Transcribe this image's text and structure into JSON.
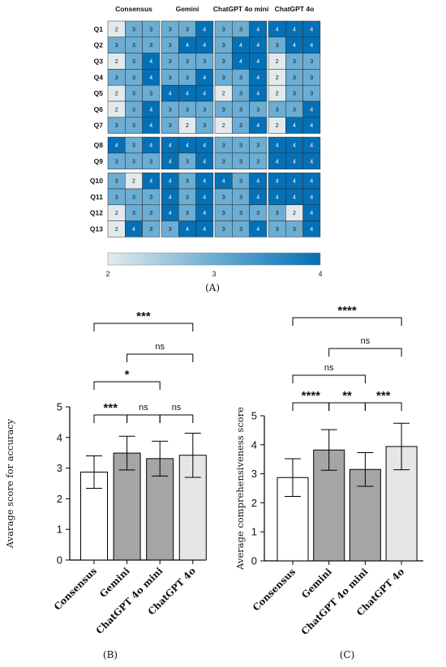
{
  "heatmap": {
    "columns": [
      "Consensus",
      "Gemini",
      "ChatGPT 4o mini",
      "ChatGPT 4o"
    ],
    "rows": [
      "Q1",
      "Q2",
      "Q3",
      "Q4",
      "Q5",
      "Q6",
      "Q7",
      "Q8",
      "Q9",
      "Q10",
      "Q11",
      "Q12",
      "Q13"
    ],
    "row_groups": [
      [
        0,
        6
      ],
      [
        7,
        8
      ],
      [
        9,
        12
      ]
    ],
    "values": [
      [
        [
          2,
          3,
          3
        ],
        [
          3,
          3,
          4
        ],
        [
          3,
          3,
          4
        ],
        [
          4,
          4,
          4
        ]
      ],
      [
        [
          3,
          3,
          3
        ],
        [
          3,
          4,
          4
        ],
        [
          3,
          4,
          4
        ],
        [
          3,
          4,
          4
        ]
      ],
      [
        [
          2,
          3,
          4
        ],
        [
          3,
          3,
          3
        ],
        [
          3,
          4,
          4
        ],
        [
          2,
          3,
          3
        ]
      ],
      [
        [
          3,
          3,
          4
        ],
        [
          3,
          3,
          4
        ],
        [
          3,
          3,
          4
        ],
        [
          2,
          3,
          3
        ]
      ],
      [
        [
          2,
          3,
          3
        ],
        [
          4,
          4,
          4
        ],
        [
          2,
          3,
          4
        ],
        [
          2,
          3,
          3
        ]
      ],
      [
        [
          2,
          3,
          4
        ],
        [
          3,
          3,
          3
        ],
        [
          3,
          3,
          3
        ],
        [
          3,
          3,
          4
        ]
      ],
      [
        [
          3,
          3,
          4
        ],
        [
          3,
          2,
          3
        ],
        [
          2,
          3,
          4
        ],
        [
          2,
          4,
          4
        ]
      ],
      [
        [
          4,
          3,
          4
        ],
        [
          4,
          4,
          4
        ],
        [
          3,
          3,
          3
        ],
        [
          4,
          4,
          4
        ]
      ],
      [
        [
          3,
          3,
          3
        ],
        [
          4,
          3,
          4
        ],
        [
          3,
          3,
          3
        ],
        [
          4,
          4,
          4
        ]
      ],
      [
        [
          3,
          2,
          4
        ],
        [
          4,
          3,
          4
        ],
        [
          4,
          3,
          4
        ],
        [
          4,
          4,
          4
        ]
      ],
      [
        [
          3,
          3,
          3
        ],
        [
          4,
          3,
          4
        ],
        [
          3,
          3,
          4
        ],
        [
          4,
          4,
          4
        ]
      ],
      [
        [
          2,
          3,
          3
        ],
        [
          4,
          3,
          4
        ],
        [
          3,
          3,
          3
        ],
        [
          3,
          2,
          4
        ]
      ],
      [
        [
          2,
          4,
          3
        ],
        [
          3,
          4,
          4
        ],
        [
          3,
          3,
          4
        ],
        [
          3,
          3,
          4
        ]
      ]
    ],
    "colorbar": {
      "min": 2,
      "mid": 3,
      "max": 4,
      "ticks": [
        "2",
        "3",
        "4"
      ],
      "colors": [
        "#e3eaee",
        "#6badd3",
        "#0570b5"
      ]
    },
    "label": "(A)"
  },
  "chart_data": [
    {
      "type": "bar",
      "panel_label": "(B)",
      "categories": [
        "Consensus",
        "Gemini",
        "ChatGPT 4o mini",
        "ChatGPT 4o"
      ],
      "values": [
        2.87,
        3.49,
        3.31,
        3.42
      ],
      "error": [
        0.53,
        0.55,
        0.57,
        0.72
      ],
      "bar_colors": [
        "#ffffff",
        "#a5a5a5",
        "#a5a5a5",
        "#e6e6e7"
      ],
      "ylabel": "Avarage score for accuracy",
      "ylim": [
        0,
        5
      ],
      "yticks": [
        "0",
        "1",
        "2",
        "3",
        "4",
        "5"
      ],
      "significance": [
        {
          "from": 0,
          "to": 1,
          "label": "***"
        },
        {
          "from": 1,
          "to": 2,
          "label": "ns"
        },
        {
          "from": 2,
          "to": 3,
          "label": "ns"
        },
        {
          "from": 0,
          "to": 2,
          "label": "*"
        },
        {
          "from": 1,
          "to": 3,
          "label": "ns"
        },
        {
          "from": 0,
          "to": 3,
          "label": "***"
        }
      ]
    },
    {
      "type": "bar",
      "panel_label": "(C)",
      "categories": [
        "Consensus",
        "Gemini",
        "ChatGPT 4o mini",
        "ChatGPT 4o"
      ],
      "values": [
        2.87,
        3.82,
        3.15,
        3.94
      ],
      "error": [
        0.65,
        0.7,
        0.58,
        0.8
      ],
      "bar_colors": [
        "#ffffff",
        "#a5a5a5",
        "#a5a5a5",
        "#e6e6e7"
      ],
      "ylabel": "Average comprehensiveness score",
      "ylim": [
        0,
        5
      ],
      "yticks": [
        "0",
        "1",
        "2",
        "3",
        "4",
        "5"
      ],
      "significance": [
        {
          "from": 0,
          "to": 1,
          "label": "****"
        },
        {
          "from": 1,
          "to": 2,
          "label": "**"
        },
        {
          "from": 2,
          "to": 3,
          "label": "***"
        },
        {
          "from": 0,
          "to": 2,
          "label": "ns"
        },
        {
          "from": 1,
          "to": 3,
          "label": "ns"
        },
        {
          "from": 0,
          "to": 3,
          "label": "****"
        }
      ]
    }
  ]
}
